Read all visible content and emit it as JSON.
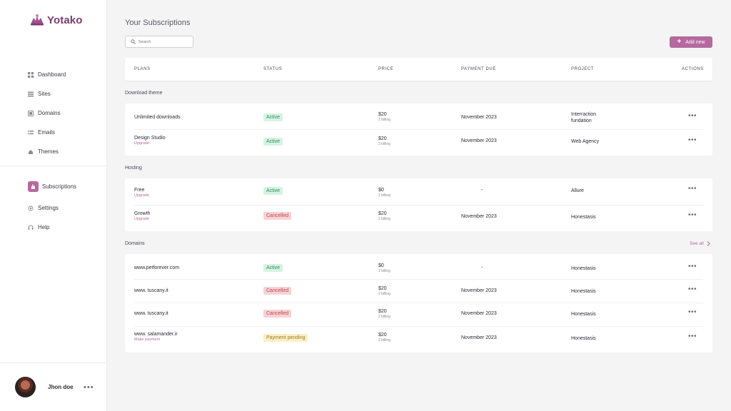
{
  "brand": {
    "name": "Yotako",
    "color": "#b5699f"
  },
  "nav": [
    {
      "label": "Dashboard",
      "icon": "grid-icon"
    },
    {
      "label": "Sites",
      "icon": "list-icon"
    },
    {
      "label": "Domains",
      "icon": "globe-box-icon"
    },
    {
      "label": "Emails",
      "icon": "mail-icon"
    },
    {
      "label": "Themes",
      "icon": "palette-icon"
    }
  ],
  "nav_secondary": [
    {
      "label": "Subscriptions",
      "icon": "hand-icon",
      "active": true
    },
    {
      "label": "Settings",
      "icon": "gear-icon"
    },
    {
      "label": "Help",
      "icon": "headset-icon"
    }
  ],
  "user": {
    "name": "Jhon doe"
  },
  "page": {
    "title": "Your Subscriptions"
  },
  "search": {
    "placeholder": "Search"
  },
  "add_button": {
    "label": "Add new"
  },
  "table": {
    "headers": [
      "PLANS",
      "STATUS",
      "PRICE",
      "PAYMENT DUE",
      "PROJECT",
      "ACTIONS"
    ]
  },
  "sections": [
    {
      "title": "Download theme",
      "rows": [
        {
          "plan": "Unlimited downloads",
          "sub": "",
          "status": "Active",
          "status_type": "active",
          "price": "$20",
          "billing": "2 billing",
          "due": "November 2023",
          "project": [
            "Interraction",
            "fundation"
          ]
        },
        {
          "plan": "Design Studio",
          "sub": "Upgrade",
          "status": "Active",
          "status_type": "active",
          "price": "$20",
          "billing": "2 billing",
          "due": "November 2023",
          "project": [
            "Web  Agency"
          ]
        }
      ]
    },
    {
      "title": "Hosting",
      "rows": [
        {
          "plan": "Free",
          "sub": "Upgrade",
          "status": "Active",
          "status_type": "active",
          "price": "$0",
          "billing": "2 billing",
          "due": "-",
          "project": [
            "Allure"
          ]
        },
        {
          "plan": "Growth",
          "sub": "Upgrade",
          "status": "Cancelled",
          "status_type": "cancel",
          "price": "$20",
          "billing": "2 billing",
          "due": "November 2023",
          "project": [
            "Honestasis"
          ]
        }
      ]
    },
    {
      "title": "Domains",
      "see_all": "See all",
      "rows": [
        {
          "plan": "www.petforever.com",
          "sub": "",
          "status": "Active",
          "status_type": "active",
          "price": "$0",
          "billing": "2 billing",
          "due": "-",
          "project": [
            "Honestasis"
          ]
        },
        {
          "plan": "www. tuscany.it",
          "sub": "",
          "status": "Cancelled",
          "status_type": "cancel",
          "price": "$20",
          "billing": "2 billing",
          "due": "November 2023",
          "project": [
            "Honestasis"
          ]
        },
        {
          "plan": "www. tuscany.it",
          "sub": "",
          "status": "Cancelled",
          "status_type": "cancel",
          "price": "$20",
          "billing": "2 billing",
          "due": "November 2023",
          "project": [
            "Honestasis"
          ]
        },
        {
          "plan": "www. salamander.ir",
          "sub": "Make payment",
          "status": "Payment pending",
          "status_type": "pending",
          "price": "$20",
          "billing": "2 billing",
          "due": "November 2023",
          "project": [
            "Honestasis"
          ]
        }
      ]
    }
  ]
}
